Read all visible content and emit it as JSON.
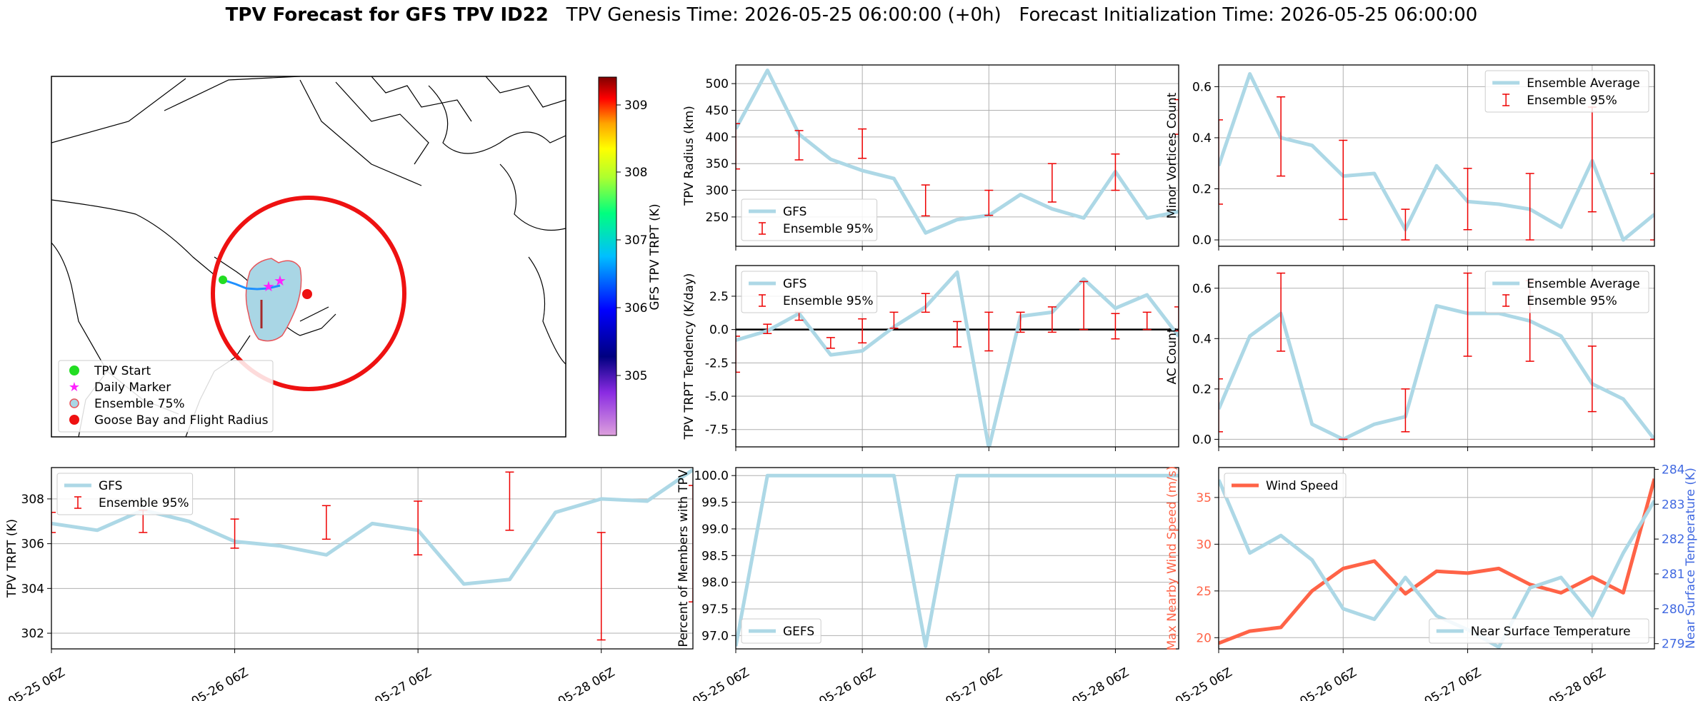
{
  "figure": {
    "title_bold": "TPV Forecast for GFS TPV ID22",
    "title_rest": "   TPV Genesis Time: 2026-05-25 06:00:00 (+0h)   Forecast Initialization Time: 2026-05-25 06:00:00",
    "time_ticks": [
      "05-25 06Z",
      "05-26 06Z",
      "05-27 06Z",
      "05-28 06Z"
    ]
  },
  "map": {
    "legend": [
      "TPV Start",
      "Daily Marker",
      "Ensemble 75%",
      "Goose Bay and Flight Radius"
    ],
    "colorbar_label": "GFS TPV TRPT (K)",
    "colorbar_ticks": [
      "309",
      "308",
      "307",
      "306",
      "305"
    ],
    "colors": {
      "start": "#22dd22",
      "marker": "#ff22ff",
      "ensemble_fill": "#a9d6e5",
      "radius": "#ee1111"
    }
  },
  "chart_data": [
    {
      "id": "radius",
      "type": "line",
      "ylabel": "TPV Radius (km)",
      "yticks": [
        250,
        300,
        350,
        400,
        450,
        500
      ],
      "ylim": [
        195,
        535
      ],
      "xlim": [
        0,
        3.5
      ],
      "series": [
        {
          "name": "GFS",
          "color": "#add8e6",
          "x": [
            0,
            0.25,
            0.5,
            0.75,
            1,
            1.25,
            1.5,
            1.75,
            2,
            2.25,
            2.5,
            2.75,
            3,
            3.25,
            3.5
          ],
          "values": [
            415,
            525,
            405,
            358,
            337,
            322,
            220,
            245,
            253,
            292,
            265,
            248,
            335,
            248,
            260
          ]
        }
      ],
      "errorbars": {
        "name": "Ensemble 95%",
        "x": [
          0,
          0.5,
          1,
          1.5,
          2,
          2.5,
          3,
          3.5
        ],
        "low": [
          340,
          357,
          360,
          252,
          253,
          278,
          300,
          405
        ],
        "high": [
          425,
          412,
          415,
          310,
          300,
          350,
          368,
          470
        ]
      },
      "legend_loc": "lower left"
    },
    {
      "id": "tendency",
      "type": "line",
      "ylabel": "TPV TRPT Tendency (K/day)",
      "yticks": [
        -7.5,
        -5.0,
        -2.5,
        0.0,
        2.5
      ],
      "ylim": [
        -8.8,
        4.8
      ],
      "xlim": [
        0,
        3.5
      ],
      "zero_line": true,
      "series": [
        {
          "name": "GFS",
          "color": "#add8e6",
          "x": [
            0,
            0.25,
            0.5,
            0.75,
            1,
            1.25,
            1.5,
            1.75,
            2,
            2.25,
            2.5,
            2.75,
            3,
            3.25,
            3.5
          ],
          "values": [
            -0.8,
            -0.1,
            1.2,
            -1.9,
            -1.6,
            0.2,
            1.7,
            4.3,
            -8.9,
            1.0,
            1.3,
            3.8,
            1.6,
            2.6,
            -0.5
          ]
        }
      ],
      "errorbars": {
        "name": "Ensemble 95%",
        "x": [
          0,
          0.25,
          0.5,
          0.75,
          1,
          1.25,
          1.5,
          1.75,
          2,
          2.25,
          2.5,
          2.75,
          3,
          3.25,
          3.5
        ],
        "low": [
          -3.2,
          -0.3,
          0.7,
          -1.4,
          -1.0,
          0.1,
          1.3,
          -1.3,
          -1.6,
          -0.2,
          -0.2,
          0.0,
          -0.7,
          0.0,
          -0.1
        ],
        "high": [
          -0.5,
          0.4,
          1.3,
          -0.6,
          0.8,
          1.3,
          2.7,
          0.6,
          1.3,
          1.3,
          1.7,
          3.6,
          1.2,
          1.3,
          1.7
        ]
      },
      "legend_loc": "upper left"
    },
    {
      "id": "trpt",
      "type": "line",
      "ylabel": "TPV TRPT (K)",
      "yticks": [
        302,
        304,
        306,
        308
      ],
      "ylim": [
        301.3,
        309.4
      ],
      "xlim": [
        0,
        3.5
      ],
      "series": [
        {
          "name": "GFS",
          "color": "#add8e6",
          "x": [
            0,
            0.25,
            0.5,
            0.75,
            1,
            1.25,
            1.5,
            1.75,
            2,
            2.25,
            2.5,
            2.75,
            3,
            3.25,
            3.5
          ],
          "values": [
            306.9,
            306.6,
            307.5,
            307.0,
            306.1,
            305.9,
            305.5,
            306.9,
            306.6,
            304.2,
            304.4,
            307.4,
            308.0,
            307.9,
            309.3
          ]
        }
      ],
      "errorbars": {
        "name": "Ensemble 95%",
        "x": [
          0,
          0.5,
          1,
          1.5,
          2,
          2.5,
          3,
          3.5
        ],
        "low": [
          306.5,
          306.5,
          305.8,
          306.2,
          305.5,
          306.6,
          301.7,
          303.4
        ],
        "high": [
          307.4,
          307.5,
          307.1,
          307.7,
          307.9,
          309.2,
          306.5,
          308.6
        ]
      },
      "legend_loc": "upper left"
    },
    {
      "id": "percent",
      "type": "line",
      "ylabel": "Percent of Members with TPV",
      "yticks": [
        97.0,
        97.5,
        98.0,
        98.5,
        99.0,
        99.5,
        100.0
      ],
      "ylim": [
        96.75,
        100.15
      ],
      "xlim": [
        0,
        3.5
      ],
      "series": [
        {
          "name": "GEFS",
          "color": "#add8e6",
          "x": [
            0,
            0.25,
            0.5,
            0.75,
            1,
            1.25,
            1.5,
            1.75,
            2,
            2.25,
            2.5,
            2.75,
            3,
            3.25,
            3.5
          ],
          "values": [
            96.8,
            100,
            100,
            100,
            100,
            100,
            96.8,
            100,
            100,
            100,
            100,
            100,
            100,
            100,
            100
          ]
        }
      ],
      "legend_loc": "lower left"
    },
    {
      "id": "minor",
      "type": "line",
      "ylabel": "Minor Vortices Count",
      "yticks": [
        0.0,
        0.2,
        0.4,
        0.6
      ],
      "ylim": [
        -0.025,
        0.685
      ],
      "xlim": [
        0,
        3.5
      ],
      "series": [
        {
          "name": "Ensemble Average",
          "color": "#add8e6",
          "x": [
            0,
            0.25,
            0.5,
            0.75,
            1,
            1.25,
            1.5,
            1.75,
            2,
            2.25,
            2.5,
            2.75,
            3,
            3.25,
            3.5
          ],
          "values": [
            0.29,
            0.65,
            0.4,
            0.37,
            0.25,
            0.26,
            0.04,
            0.29,
            0.15,
            0.14,
            0.12,
            0.05,
            0.31,
            0.0,
            0.1
          ]
        }
      ],
      "errorbars": {
        "name": "Ensemble 95%",
        "x": [
          0,
          0.5,
          1,
          1.5,
          2,
          2.5,
          3,
          3.5
        ],
        "low": [
          0.14,
          0.25,
          0.08,
          0.0,
          0.04,
          0.0,
          0.11,
          0.0
        ],
        "high": [
          0.47,
          0.56,
          0.39,
          0.12,
          0.28,
          0.26,
          0.52,
          0.26
        ]
      },
      "legend_loc": "upper right"
    },
    {
      "id": "ac",
      "type": "line",
      "ylabel": "AC Count",
      "yticks": [
        0.0,
        0.2,
        0.4,
        0.6
      ],
      "ylim": [
        -0.03,
        0.69
      ],
      "xlim": [
        0,
        3.5
      ],
      "series": [
        {
          "name": "Ensemble Average",
          "color": "#add8e6",
          "x": [
            0,
            0.25,
            0.5,
            0.75,
            1,
            1.25,
            1.5,
            1.75,
            2,
            2.25,
            2.5,
            2.75,
            3,
            3.25,
            3.5
          ],
          "values": [
            0.12,
            0.41,
            0.5,
            0.06,
            0.0,
            0.06,
            0.09,
            0.53,
            0.5,
            0.5,
            0.47,
            0.41,
            0.22,
            0.16,
            0.0
          ]
        }
      ],
      "errorbars": {
        "name": "Ensemble 95%",
        "x": [
          0,
          0.5,
          1,
          1.5,
          2,
          2.5,
          3,
          3.5
        ],
        "low": [
          0.03,
          0.35,
          0.0,
          0.03,
          0.33,
          0.31,
          0.11,
          0.0
        ],
        "high": [
          0.24,
          0.66,
          0.0,
          0.2,
          0.66,
          0.63,
          0.37,
          0.0
        ]
      },
      "legend_loc": "upper right"
    },
    {
      "id": "wind_temp",
      "type": "line",
      "ylabel": "Max Nearby Wind Speed (m/s)",
      "ylabel_right": "Near Surface Temperature (K)",
      "yticks": [
        20,
        25,
        30,
        35
      ],
      "ylim": [
        18.8,
        38.2
      ],
      "yticks_right": [
        279,
        280,
        281,
        282,
        283,
        284
      ],
      "ylim_right": [
        278.85,
        284.05
      ],
      "xlim": [
        0,
        3.5
      ],
      "series": [
        {
          "name": "Wind Speed",
          "color": "#ff6347",
          "axis": "left",
          "x": [
            0,
            0.25,
            0.5,
            0.75,
            1,
            1.25,
            1.5,
            1.75,
            2,
            2.25,
            2.5,
            2.75,
            3,
            3.25,
            3.5
          ],
          "values": [
            19.4,
            20.7,
            21.1,
            25.0,
            27.4,
            28.2,
            24.7,
            27.1,
            26.9,
            27.4,
            25.7,
            24.8,
            26.5,
            24.8,
            37.0
          ]
        },
        {
          "name": "Near Surface Temperature",
          "color": "#add8e6",
          "axis": "right",
          "x": [
            0,
            0.25,
            0.5,
            0.75,
            1,
            1.25,
            1.5,
            1.75,
            2,
            2.25,
            2.5,
            2.75,
            3,
            3.25,
            3.5
          ],
          "values": [
            283.7,
            281.6,
            282.1,
            281.4,
            280.0,
            279.7,
            280.9,
            279.8,
            279.4,
            278.9,
            280.6,
            280.9,
            279.8,
            281.6,
            283.1
          ]
        }
      ],
      "legend_loc": "upper left / lower right"
    }
  ]
}
